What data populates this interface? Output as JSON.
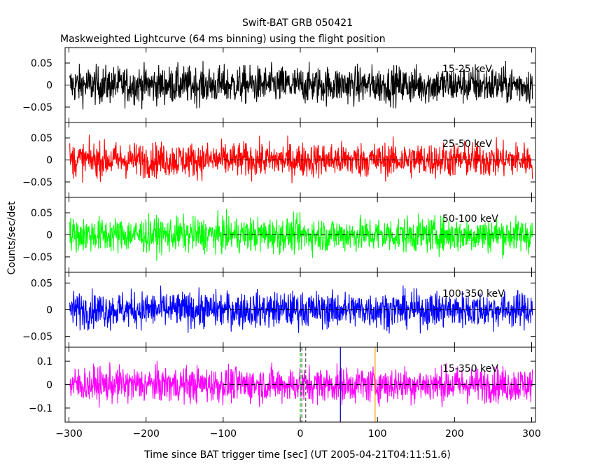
{
  "figure": {
    "title": "Swift-BAT GRB 050421",
    "subtitle": "Maskweighted Lightcurve (64 ms binning) using the flight position",
    "xlabel": "Time since BAT trigger time [sec] (UT 2005-04-21T04:11:51.6)",
    "ylabel": "Counts/sec/det"
  },
  "chart_data": [
    {
      "type": "line",
      "band": "15-25 keV",
      "color": "#000000",
      "xlim": [
        -305,
        305
      ],
      "ylim": [
        -0.085,
        0.085
      ],
      "yticks": [
        {
          "value": 0.05,
          "label": "0.05"
        },
        {
          "value": 0,
          "label": "0"
        },
        {
          "value": -0.05,
          "label": "−0.05"
        }
      ],
      "baseline": false,
      "noise_amplitude": 0.028
    },
    {
      "type": "line",
      "band": "25-50 keV",
      "color": "#ff0000",
      "xlim": [
        -305,
        305
      ],
      "ylim": [
        -0.085,
        0.085
      ],
      "yticks": [
        {
          "value": 0.05,
          "label": "0.05"
        },
        {
          "value": 0,
          "label": "0"
        },
        {
          "value": -0.05,
          "label": "−0.05"
        }
      ],
      "baseline": true,
      "noise_amplitude": 0.026
    },
    {
      "type": "line",
      "band": "50-100 keV",
      "color": "#00ff00",
      "xlim": [
        -305,
        305
      ],
      "ylim": [
        -0.085,
        0.085
      ],
      "yticks": [
        {
          "value": 0.05,
          "label": "0.05"
        },
        {
          "value": 0,
          "label": "0"
        },
        {
          "value": -0.05,
          "label": "−0.05"
        }
      ],
      "baseline": true,
      "noise_amplitude": 0.026
    },
    {
      "type": "line",
      "band": "100-350 keV",
      "color": "#0000ff",
      "xlim": [
        -305,
        305
      ],
      "ylim": [
        -0.07,
        0.07
      ],
      "yticks": [
        {
          "value": 0.05,
          "label": "0.05"
        },
        {
          "value": 0,
          "label": "0"
        },
        {
          "value": -0.05,
          "label": "−0.05"
        }
      ],
      "baseline": true,
      "noise_amplitude": 0.022
    },
    {
      "type": "line",
      "band": "15-350 keV",
      "color": "#ff00ff",
      "xlim": [
        -305,
        305
      ],
      "ylim": [
        -0.16,
        0.16
      ],
      "yticks": [
        {
          "value": 0.1,
          "label": "0.1"
        },
        {
          "value": 0,
          "label": "0"
        },
        {
          "value": -0.1,
          "label": "−0.1"
        }
      ],
      "baseline": true,
      "noise_amplitude": 0.05,
      "markers": [
        {
          "x": 0,
          "color": "#00cc00",
          "style": "dashed"
        },
        {
          "x": 2,
          "color": "#555555",
          "style": "dashed"
        },
        {
          "x": 7,
          "color": "#555555",
          "style": "dashed"
        },
        {
          "x": 52,
          "color": "#0000aa",
          "style": "solid"
        },
        {
          "x": 97,
          "color": "#ff9900",
          "style": "solid"
        }
      ]
    }
  ],
  "xticks": [
    {
      "value": -300,
      "label": "−300"
    },
    {
      "value": -200,
      "label": "−200"
    },
    {
      "value": -100,
      "label": "−100"
    },
    {
      "value": 0,
      "label": "0"
    },
    {
      "value": 100,
      "label": "100"
    },
    {
      "value": 200,
      "label": "200"
    },
    {
      "value": 300,
      "label": "300"
    }
  ]
}
